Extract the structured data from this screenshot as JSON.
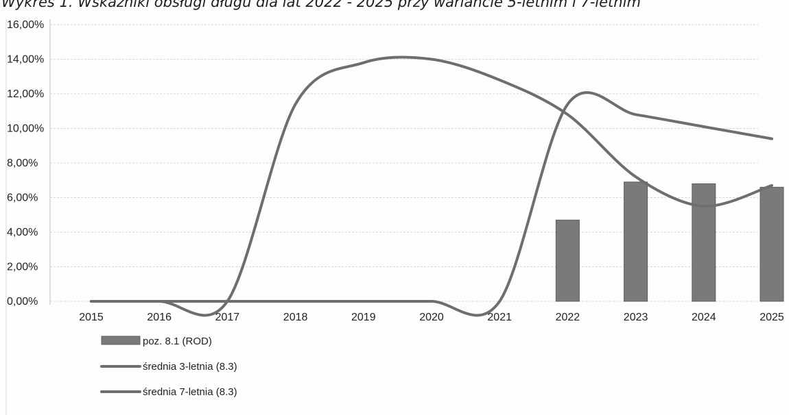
{
  "chart_data": {
    "type": "bar",
    "title": "Wykres 1. Wskaźniki obsługi długu dla lat 2022 - 2025 przy wariancie 5-letnim i 7-letnim",
    "xlabel": "",
    "ylabel": "",
    "categories": [
      "2015",
      "2016",
      "2017",
      "2018",
      "2019",
      "2020",
      "2021",
      "2022",
      "2023",
      "2024",
      "2025"
    ],
    "ylim": [
      0,
      16
    ],
    "ytick_values": [
      0,
      2,
      4,
      6,
      8,
      10,
      12,
      14,
      16
    ],
    "ytick_labels": [
      "0,00%",
      "2,00%",
      "4,00%",
      "6,00%",
      "8,00%",
      "10,00%",
      "12,00%",
      "14,00%",
      "16,00%"
    ],
    "grid": true,
    "legend_position": "bottom-left",
    "series": [
      {
        "name": "poz. 8.1 (ROD)",
        "kind": "bar",
        "color": "#7a7a7a",
        "values": [
          null,
          null,
          null,
          null,
          null,
          null,
          null,
          4.7,
          6.9,
          6.8,
          6.6
        ]
      },
      {
        "name": "średnia 3-letnia (8.3)",
        "kind": "line",
        "color": "#6e6e6e",
        "values": [
          0,
          0,
          0,
          11.4,
          13.8,
          14.0,
          12.8,
          10.8,
          7.2,
          5.5,
          6.7
        ]
      },
      {
        "name": "średnia 7-letnia (8.3)",
        "kind": "line",
        "color": "#6e6e6e",
        "values": [
          0,
          0,
          0,
          0,
          0,
          0,
          0,
          11.4,
          10.8,
          10.1,
          9.4
        ]
      }
    ]
  }
}
